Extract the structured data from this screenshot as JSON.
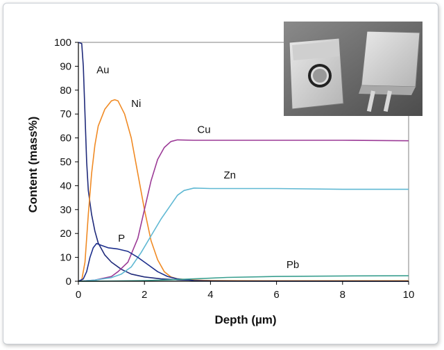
{
  "chart_data": {
    "type": "line",
    "title": "",
    "xlabel": "Depth (µm)",
    "ylabel": "Content (mass%)",
    "xlim": [
      0,
      10
    ],
    "ylim": [
      0,
      100
    ],
    "xticks": [
      "0",
      "2",
      "4",
      "6",
      "8",
      "10"
    ],
    "yticks": [
      "0",
      "10",
      "20",
      "30",
      "40",
      "50",
      "60",
      "70",
      "80",
      "90",
      "100"
    ],
    "grid": false,
    "legend": "inline labels",
    "series": [
      {
        "name": "Au",
        "color": "#1f2a7a",
        "label_at": [
          0.55,
          87
        ],
        "points": [
          [
            0,
            100
          ],
          [
            0.1,
            99.5
          ],
          [
            0.15,
            90
          ],
          [
            0.2,
            70
          ],
          [
            0.25,
            50
          ],
          [
            0.3,
            38
          ],
          [
            0.4,
            28
          ],
          [
            0.5,
            21
          ],
          [
            0.6,
            16
          ],
          [
            0.8,
            11
          ],
          [
            1.0,
            8
          ],
          [
            1.3,
            5
          ],
          [
            1.6,
            3
          ],
          [
            2.0,
            1.8
          ],
          [
            2.5,
            1.0
          ],
          [
            3,
            0.6
          ],
          [
            4,
            0.3
          ],
          [
            6,
            0.1
          ],
          [
            10,
            0.05
          ]
        ]
      },
      {
        "name": "Ni",
        "color": "#f08a24",
        "label_at": [
          1.6,
          73
        ],
        "points": [
          [
            0,
            0
          ],
          [
            0.1,
            0.5
          ],
          [
            0.2,
            8
          ],
          [
            0.3,
            28
          ],
          [
            0.4,
            45
          ],
          [
            0.5,
            57
          ],
          [
            0.6,
            65
          ],
          [
            0.8,
            72
          ],
          [
            1.0,
            75.5
          ],
          [
            1.1,
            76
          ],
          [
            1.2,
            75.5
          ],
          [
            1.4,
            70
          ],
          [
            1.6,
            60
          ],
          [
            1.8,
            45
          ],
          [
            2.0,
            30
          ],
          [
            2.2,
            17
          ],
          [
            2.4,
            9
          ],
          [
            2.6,
            4
          ],
          [
            2.8,
            1.8
          ],
          [
            3.0,
            1
          ],
          [
            3.5,
            0.5
          ],
          [
            4,
            0.3
          ],
          [
            6,
            0.2
          ],
          [
            10,
            0.2
          ]
        ]
      },
      {
        "name": "Cu",
        "color": "#9b3a96",
        "label_at": [
          3.6,
          62
        ],
        "points": [
          [
            0,
            0
          ],
          [
            0.5,
            0.5
          ],
          [
            1.0,
            2
          ],
          [
            1.2,
            4
          ],
          [
            1.5,
            8
          ],
          [
            1.8,
            18
          ],
          [
            2.0,
            30
          ],
          [
            2.2,
            42
          ],
          [
            2.4,
            51
          ],
          [
            2.6,
            56
          ],
          [
            2.8,
            58.5
          ],
          [
            3.0,
            59.2
          ],
          [
            3.5,
            59
          ],
          [
            4,
            59
          ],
          [
            6,
            59
          ],
          [
            8,
            59
          ],
          [
            10,
            58.8
          ]
        ]
      },
      {
        "name": "Zn",
        "color": "#5fb8d3",
        "label_at": [
          4.4,
          43
        ],
        "points": [
          [
            0,
            0
          ],
          [
            0.5,
            0.5
          ],
          [
            1.0,
            1.5
          ],
          [
            1.3,
            3
          ],
          [
            1.6,
            6
          ],
          [
            1.9,
            12
          ],
          [
            2.2,
            19
          ],
          [
            2.5,
            26
          ],
          [
            2.8,
            32
          ],
          [
            3.0,
            36
          ],
          [
            3.2,
            38
          ],
          [
            3.5,
            39
          ],
          [
            4,
            38.8
          ],
          [
            6,
            38.8
          ],
          [
            8,
            38.5
          ],
          [
            10,
            38.5
          ]
        ]
      },
      {
        "name": "P",
        "color": "#1c2e8c",
        "label_at": [
          1.2,
          16.5
        ],
        "points": [
          [
            0,
            0
          ],
          [
            0.15,
            1
          ],
          [
            0.25,
            4
          ],
          [
            0.35,
            10
          ],
          [
            0.45,
            14
          ],
          [
            0.55,
            15.8
          ],
          [
            0.7,
            15
          ],
          [
            0.9,
            14
          ],
          [
            1.2,
            13.5
          ],
          [
            1.5,
            12.5
          ],
          [
            1.8,
            10
          ],
          [
            2.1,
            7
          ],
          [
            2.4,
            4
          ],
          [
            2.7,
            2
          ],
          [
            3.0,
            1
          ],
          [
            3.5,
            0.3
          ],
          [
            4,
            0.1
          ],
          [
            10,
            0
          ]
        ]
      },
      {
        "name": "Pb",
        "color": "#3a9f8f",
        "label_at": [
          6.3,
          5.5
        ],
        "points": [
          [
            0,
            0
          ],
          [
            1,
            0.1
          ],
          [
            2,
            0.3
          ],
          [
            2.8,
            0.6
          ],
          [
            3.5,
            1.0
          ],
          [
            4.5,
            1.6
          ],
          [
            6,
            2.0
          ],
          [
            8,
            2.2
          ],
          [
            10,
            2.3
          ]
        ]
      }
    ]
  }
}
